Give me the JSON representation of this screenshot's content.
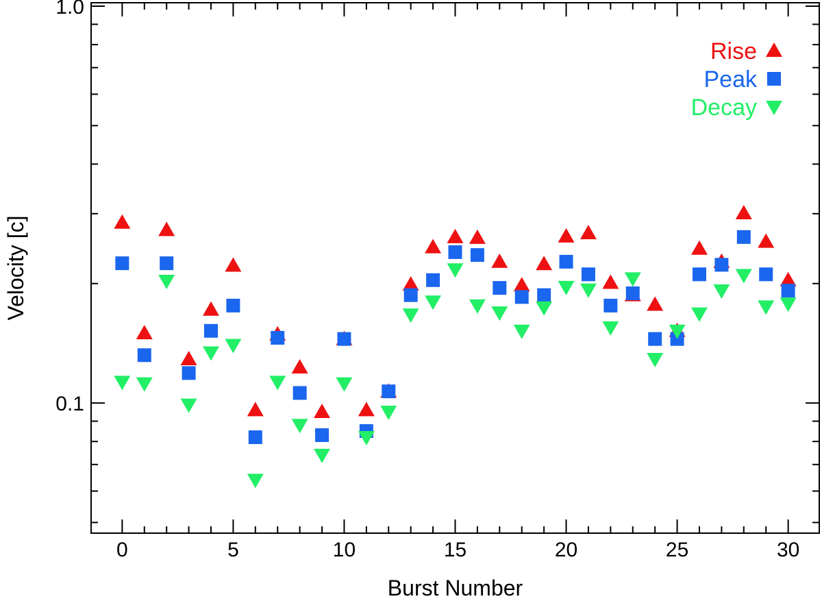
{
  "chart_data": {
    "type": "scatter",
    "xlabel": "Burst Number",
    "ylabel": "Velocity [c]",
    "xlim": [
      -1.4,
      31.4
    ],
    "ylim": [
      0.047,
      1.02
    ],
    "yscale": "log",
    "x_ticks": [
      0,
      5,
      10,
      15,
      20,
      25,
      30
    ],
    "x_tick_labels": [
      "0",
      "5",
      "10",
      "15",
      "20",
      "25",
      "30"
    ],
    "y_major_ticks": [
      0.1,
      1.0
    ],
    "y_tick_labels": [
      "0.1",
      "1.0"
    ],
    "y_minor_ticks": [
      0.05,
      0.06,
      0.07,
      0.08,
      0.09,
      0.2,
      0.3,
      0.4,
      0.5,
      0.6,
      0.7,
      0.8,
      0.9
    ],
    "legend_position": "top-right",
    "grid": false,
    "x": [
      0,
      1,
      2,
      3,
      4,
      5,
      6,
      7,
      8,
      9,
      10,
      11,
      12,
      13,
      14,
      15,
      16,
      17,
      18,
      19,
      20,
      21,
      22,
      23,
      24,
      25,
      26,
      27,
      28,
      29,
      30
    ],
    "series": [
      {
        "name": "Rise",
        "color": "#ee1111",
        "marker": "triangle-up",
        "values": [
          0.285,
          0.15,
          0.273,
          0.129,
          0.172,
          0.222,
          0.096,
          0.149,
          0.123,
          0.095,
          0.145,
          0.096,
          0.107,
          0.199,
          0.247,
          0.262,
          0.261,
          0.227,
          0.198,
          0.224,
          0.263,
          0.268,
          0.201,
          0.187,
          0.177,
          0.152,
          0.245,
          0.227,
          0.301,
          0.255,
          0.204
        ]
      },
      {
        "name": "Peak",
        "color": "#1a66ee",
        "marker": "square",
        "values": [
          0.225,
          0.132,
          0.225,
          0.119,
          0.152,
          0.176,
          0.082,
          0.146,
          0.106,
          0.083,
          0.145,
          0.085,
          0.107,
          0.187,
          0.204,
          0.24,
          0.236,
          0.195,
          0.185,
          0.187,
          0.227,
          0.211,
          0.176,
          0.189,
          0.145,
          0.145,
          0.211,
          0.223,
          0.262,
          0.211,
          0.192
        ]
      },
      {
        "name": "Decay",
        "color": "#22ee66",
        "marker": "triangle-down",
        "values": [
          0.113,
          0.112,
          0.203,
          0.099,
          0.134,
          0.14,
          0.064,
          0.113,
          0.088,
          0.074,
          0.112,
          0.082,
          0.095,
          0.167,
          0.18,
          0.217,
          0.176,
          0.169,
          0.152,
          0.174,
          0.196,
          0.193,
          0.155,
          0.206,
          0.129,
          0.152,
          0.168,
          0.192,
          0.21,
          0.175,
          0.178
        ]
      }
    ]
  }
}
